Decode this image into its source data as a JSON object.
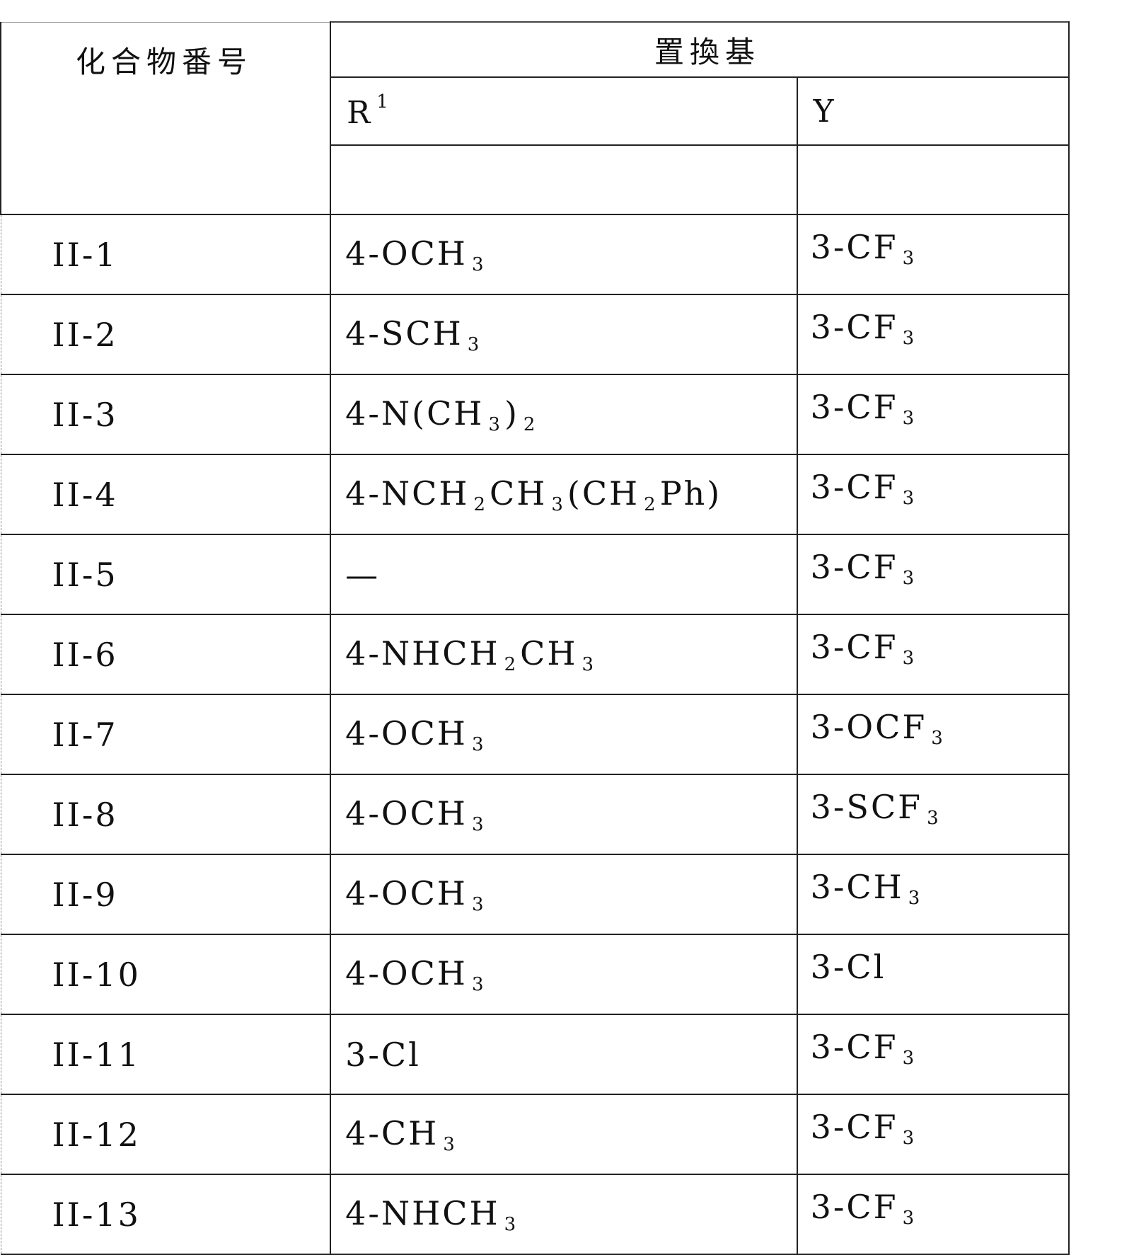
{
  "header": {
    "compound_no": "化合物番号",
    "substituent": "置換基",
    "r1_label": "R",
    "r1_sup": "1",
    "y_label": "Y"
  },
  "rows": [
    {
      "id": "II-1",
      "r1": [
        [
          "4-OCH"
        ],
        [
          "3",
          "s"
        ]
      ],
      "y": [
        [
          "3-CF"
        ],
        [
          "3",
          "s"
        ]
      ]
    },
    {
      "id": "II-2",
      "r1": [
        [
          "4-SCH"
        ],
        [
          "3",
          "s"
        ]
      ],
      "y": [
        [
          "3-CF"
        ],
        [
          "3",
          "s"
        ]
      ]
    },
    {
      "id": "II-3",
      "r1": [
        [
          "4-N(CH"
        ],
        [
          "3",
          "s"
        ],
        [
          ")"
        ],
        [
          "2",
          "s"
        ]
      ],
      "y": [
        [
          "3-CF"
        ],
        [
          "3",
          "s"
        ]
      ]
    },
    {
      "id": "II-4",
      "r1": [
        [
          "4-NCH"
        ],
        [
          "2",
          "s"
        ],
        [
          "CH"
        ],
        [
          "3",
          "s"
        ],
        [
          "(CH"
        ],
        [
          "2",
          "s"
        ],
        [
          "Ph)"
        ]
      ],
      "y": [
        [
          "3-CF"
        ],
        [
          "3",
          "s"
        ]
      ]
    },
    {
      "id": "II-5",
      "r1": [
        [
          "—"
        ]
      ],
      "y": [
        [
          "3-CF"
        ],
        [
          "3",
          "s"
        ]
      ]
    },
    {
      "id": "II-6",
      "r1": [
        [
          "4-NHCH"
        ],
        [
          "2",
          "s"
        ],
        [
          "CH"
        ],
        [
          "3",
          "s"
        ]
      ],
      "y": [
        [
          "3-CF"
        ],
        [
          "3",
          "s"
        ]
      ]
    },
    {
      "id": "II-7",
      "r1": [
        [
          "4-OCH"
        ],
        [
          "3",
          "s"
        ]
      ],
      "y": [
        [
          "3-OCF"
        ],
        [
          "3",
          "s"
        ]
      ]
    },
    {
      "id": "II-8",
      "r1": [
        [
          "4-OCH"
        ],
        [
          "3",
          "s"
        ]
      ],
      "y": [
        [
          "3-SCF"
        ],
        [
          "3",
          "s"
        ]
      ]
    },
    {
      "id": "II-9",
      "r1": [
        [
          "4-OCH"
        ],
        [
          "3",
          "s"
        ]
      ],
      "y": [
        [
          "3-CH"
        ],
        [
          "3",
          "s"
        ]
      ]
    },
    {
      "id": "II-10",
      "r1": [
        [
          "4-OCH"
        ],
        [
          "3",
          "s"
        ]
      ],
      "y": [
        [
          "3-Cl"
        ]
      ]
    },
    {
      "id": "II-11",
      "r1": [
        [
          "3-Cl"
        ]
      ],
      "y": [
        [
          "3-CF"
        ],
        [
          "3",
          "s"
        ]
      ]
    },
    {
      "id": "II-12",
      "r1": [
        [
          "4-CH"
        ],
        [
          "3",
          "s"
        ]
      ],
      "y": [
        [
          "3-CF"
        ],
        [
          "3",
          "s"
        ]
      ]
    },
    {
      "id": "II-13",
      "r1": [
        [
          "4-NHCH"
        ],
        [
          "3",
          "s"
        ]
      ],
      "y": [
        [
          "3-CF"
        ],
        [
          "3",
          "s"
        ]
      ]
    }
  ]
}
